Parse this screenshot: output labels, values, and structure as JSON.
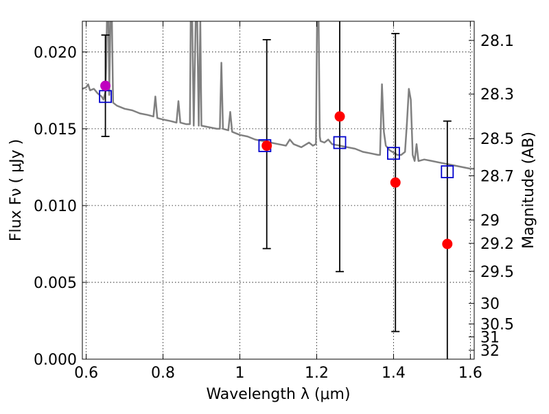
{
  "chart_data": {
    "type": "scatter",
    "title": "",
    "xlabel": "Wavelength  λ (μm)",
    "ylabel": "Flux  Fν  ( μJy )",
    "y2label": "Magnitude (AB)",
    "xlim": [
      0.59,
      1.61
    ],
    "ylim": [
      0.0,
      0.022
    ],
    "x_ticks": [
      0.6,
      0.8,
      1.0,
      1.2,
      1.4,
      1.6
    ],
    "x_tick_labels": [
      "0.6",
      "0.8",
      "1",
      "1.2",
      "1.4",
      "1.6"
    ],
    "y_ticks": [
      0.0,
      0.005,
      0.01,
      0.015,
      0.02
    ],
    "y_tick_labels": [
      "0.000",
      "0.005",
      "0.010",
      "0.015",
      "0.020"
    ],
    "y2_ticks": [
      {
        "label": "28.1",
        "flux": 0.02075
      },
      {
        "label": "28.3",
        "flux": 0.01726
      },
      {
        "label": "28.5",
        "flux": 0.01436
      },
      {
        "label": "28.7",
        "flux": 0.01194
      },
      {
        "label": "29",
        "flux": 0.00906
      },
      {
        "label": "29.2",
        "flux": 0.00754
      },
      {
        "label": "29.5",
        "flux": 0.00572
      },
      {
        "label": "30",
        "flux": 0.00363
      },
      {
        "label": "30.5",
        "flux": 0.00229
      },
      {
        "label": "31",
        "flux": 0.00145
      },
      {
        "label": "32",
        "flux": 0.00058
      }
    ],
    "grid": true,
    "series": [
      {
        "kind": "line",
        "color": "#808080",
        "points": [
          [
            0.59,
            0.0176
          ],
          [
            0.6,
            0.0177
          ],
          [
            0.605,
            0.0179
          ],
          [
            0.61,
            0.0175
          ],
          [
            0.62,
            0.0176
          ],
          [
            0.63,
            0.0173
          ],
          [
            0.64,
            0.0171
          ],
          [
            0.645,
            0.0169
          ],
          [
            0.65,
            0.0174
          ],
          [
            0.652,
            0.019
          ],
          [
            0.654,
            0.022
          ],
          [
            0.658,
            0.022
          ],
          [
            0.66,
            0.0172
          ],
          [
            0.663,
            0.022
          ],
          [
            0.667,
            0.022
          ],
          [
            0.67,
            0.0167
          ],
          [
            0.68,
            0.0165
          ],
          [
            0.7,
            0.0163
          ],
          [
            0.72,
            0.0162
          ],
          [
            0.74,
            0.016
          ],
          [
            0.76,
            0.0159
          ],
          [
            0.775,
            0.0158
          ],
          [
            0.78,
            0.0171
          ],
          [
            0.785,
            0.0157
          ],
          [
            0.8,
            0.0156
          ],
          [
            0.82,
            0.0155
          ],
          [
            0.835,
            0.0154
          ],
          [
            0.84,
            0.0168
          ],
          [
            0.845,
            0.0154
          ],
          [
            0.86,
            0.0153
          ],
          [
            0.87,
            0.0153
          ],
          [
            0.872,
            0.022
          ],
          [
            0.876,
            0.022
          ],
          [
            0.88,
            0.0152
          ],
          [
            0.885,
            0.022
          ],
          [
            0.889,
            0.022
          ],
          [
            0.893,
            0.0152
          ],
          [
            0.897,
            0.022
          ],
          [
            0.9,
            0.0152
          ],
          [
            0.92,
            0.0151
          ],
          [
            0.94,
            0.015
          ],
          [
            0.948,
            0.015
          ],
          [
            0.952,
            0.0193
          ],
          [
            0.956,
            0.015
          ],
          [
            0.97,
            0.0149
          ],
          [
            0.975,
            0.0161
          ],
          [
            0.98,
            0.0148
          ],
          [
            1.0,
            0.0146
          ],
          [
            1.02,
            0.0145
          ],
          [
            1.04,
            0.0143
          ],
          [
            1.06,
            0.0142
          ],
          [
            1.08,
            0.0141
          ],
          [
            1.1,
            0.014
          ],
          [
            1.12,
            0.0139
          ],
          [
            1.13,
            0.0143
          ],
          [
            1.14,
            0.014
          ],
          [
            1.16,
            0.0138
          ],
          [
            1.18,
            0.0141
          ],
          [
            1.19,
            0.0139
          ],
          [
            1.198,
            0.014
          ],
          [
            1.201,
            0.022
          ],
          [
            1.205,
            0.022
          ],
          [
            1.208,
            0.0145
          ],
          [
            1.21,
            0.0142
          ],
          [
            1.22,
            0.0141
          ],
          [
            1.23,
            0.0143
          ],
          [
            1.24,
            0.014
          ],
          [
            1.26,
            0.0139
          ],
          [
            1.28,
            0.0138
          ],
          [
            1.3,
            0.0137
          ],
          [
            1.32,
            0.0135
          ],
          [
            1.34,
            0.0134
          ],
          [
            1.36,
            0.0133
          ],
          [
            1.365,
            0.0133
          ],
          [
            1.37,
            0.0179
          ],
          [
            1.375,
            0.0148
          ],
          [
            1.38,
            0.0139
          ],
          [
            1.39,
            0.0136
          ],
          [
            1.41,
            0.0133
          ],
          [
            1.42,
            0.0133
          ],
          [
            1.43,
            0.0135
          ],
          [
            1.435,
            0.0154
          ],
          [
            1.44,
            0.0176
          ],
          [
            1.445,
            0.0169
          ],
          [
            1.45,
            0.0133
          ],
          [
            1.455,
            0.0129
          ],
          [
            1.46,
            0.014
          ],
          [
            1.465,
            0.0129
          ],
          [
            1.48,
            0.013
          ],
          [
            1.5,
            0.0129
          ],
          [
            1.52,
            0.0128
          ],
          [
            1.54,
            0.0127
          ],
          [
            1.56,
            0.0126
          ],
          [
            1.58,
            0.0125
          ],
          [
            1.6,
            0.0124
          ],
          [
            1.61,
            0.0124
          ]
        ]
      },
      {
        "kind": "errorbar",
        "color": "#000000",
        "points": [
          {
            "x": 0.65,
            "low": 0.0145,
            "high": 0.0211
          },
          {
            "x": 1.07,
            "low": 0.0072,
            "high": 0.0208
          },
          {
            "x": 1.26,
            "low": 0.0057,
            "high": 0.022
          },
          {
            "x": 1.405,
            "low": 0.0018,
            "high": 0.0212
          },
          {
            "x": 1.54,
            "low": 0.0,
            "high": 0.0155
          }
        ]
      },
      {
        "kind": "square",
        "color": "#0000cc",
        "points": [
          [
            0.65,
            0.0171
          ],
          [
            1.065,
            0.0139
          ],
          [
            1.26,
            0.0141
          ],
          [
            1.4,
            0.0134
          ],
          [
            1.54,
            0.0122
          ]
        ]
      },
      {
        "kind": "dot",
        "color": "#ff0000",
        "points": [
          [
            1.07,
            0.0139
          ],
          [
            1.26,
            0.0158
          ],
          [
            1.405,
            0.0115
          ],
          [
            1.54,
            0.0075
          ]
        ]
      },
      {
        "kind": "dot",
        "color": "#bf00bf",
        "points": [
          [
            0.65,
            0.0178
          ]
        ]
      }
    ]
  }
}
